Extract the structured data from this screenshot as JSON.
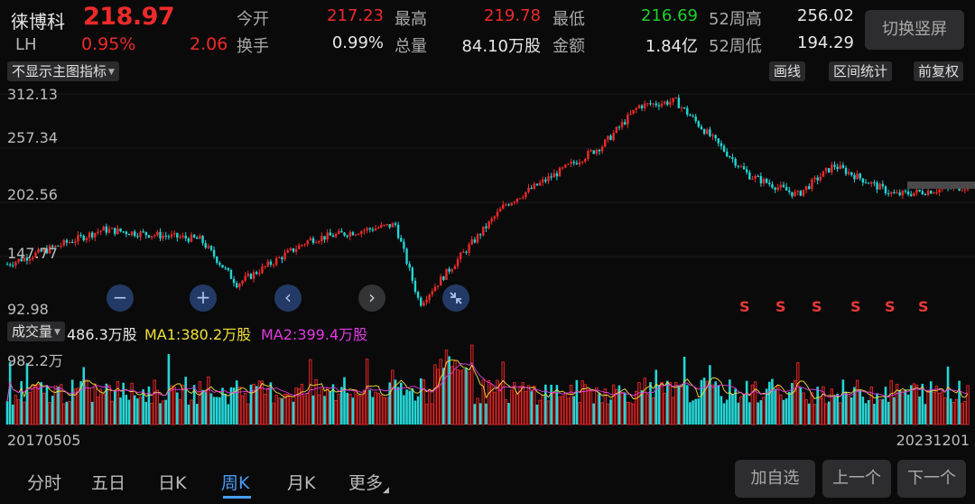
{
  "quote": {
    "name": "徕博科",
    "code": "LH",
    "price": "218.97",
    "change_pct": "0.95%",
    "change": "2.06",
    "fields": [
      {
        "label": "今开",
        "value": "217.23",
        "color": "#ee2a2a"
      },
      {
        "label": "最高",
        "value": "219.78",
        "color": "#ee2a2a"
      },
      {
        "label": "最低",
        "value": "216.69",
        "color": "#1fd02a"
      },
      {
        "label": "52周高",
        "value": "256.02",
        "color": "#e8e8e8"
      },
      {
        "label": "换手",
        "value": "0.99%",
        "color": "#e8e8e8"
      },
      {
        "label": "总量",
        "value": "84.10万股",
        "color": "#e8e8e8"
      },
      {
        "label": "金额",
        "value": "1.84亿",
        "color": "#e8e8e8"
      },
      {
        "label": "52周低",
        "value": "194.29",
        "color": "#e8e8e8"
      }
    ]
  },
  "switch_button": "切换竖屏",
  "toolbar": {
    "indicator_select": "不显示主图指标",
    "draw_line": "画线",
    "range_stats": "区间统计",
    "adjust": "前复权"
  },
  "price_axis": [
    "312.13",
    "257.34",
    "202.56",
    "147.77",
    "92.98"
  ],
  "nav": {
    "zoom_out": "−",
    "zoom_in": "+",
    "prev": "‹",
    "next": "›"
  },
  "signals": [
    "S",
    "S",
    "S",
    "S",
    "S",
    "S"
  ],
  "volume": {
    "select": "成交量",
    "current": "486.3万股",
    "ma1": "MA1:380.2万股",
    "ma2": "MA2:399.4万股",
    "axis_max": "982.2万"
  },
  "dates": {
    "start": "20170505",
    "end": "20231201"
  },
  "colors": {
    "up": "#ee2a2a",
    "down": "#25d5d5",
    "ma1": "#f2e13a",
    "ma2": "#e23ae2",
    "accent": "#4a9cf5"
  },
  "tabs": [
    {
      "label": "分时",
      "active": false
    },
    {
      "label": "五日",
      "active": false
    },
    {
      "label": "日K",
      "active": false
    },
    {
      "label": "周K",
      "active": true
    },
    {
      "label": "月K",
      "active": false
    },
    {
      "label": "更多",
      "active": false
    }
  ],
  "bottom_buttons": {
    "add_watch": "加自选",
    "prev_stock": "上一个",
    "next_stock": "下一个"
  },
  "chart_data": {
    "type": "candlestick",
    "y_axis_labels": [
      "312.13",
      "257.34",
      "202.56",
      "147.77",
      "92.98"
    ],
    "ylim": [
      92.98,
      312.13
    ],
    "x_range": [
      "20170505",
      "20231201"
    ],
    "approx_trend_close": [
      {
        "t": "20170505",
        "v": 140
      },
      {
        "t": "20180101",
        "v": 175
      },
      {
        "t": "20180901",
        "v": 165
      },
      {
        "t": "20181201",
        "v": 120
      },
      {
        "t": "20190601",
        "v": 165
      },
      {
        "t": "20200101",
        "v": 180
      },
      {
        "t": "20200301",
        "v": 100
      },
      {
        "t": "20201001",
        "v": 200
      },
      {
        "t": "20210601",
        "v": 260
      },
      {
        "t": "20210901",
        "v": 300
      },
      {
        "t": "20211201",
        "v": 305
      },
      {
        "t": "20220601",
        "v": 230
      },
      {
        "t": "20221001",
        "v": 210
      },
      {
        "t": "20230101",
        "v": 240
      },
      {
        "t": "20230601",
        "v": 210
      },
      {
        "t": "20231201",
        "v": 219
      }
    ],
    "volume_max": "982.2万"
  }
}
